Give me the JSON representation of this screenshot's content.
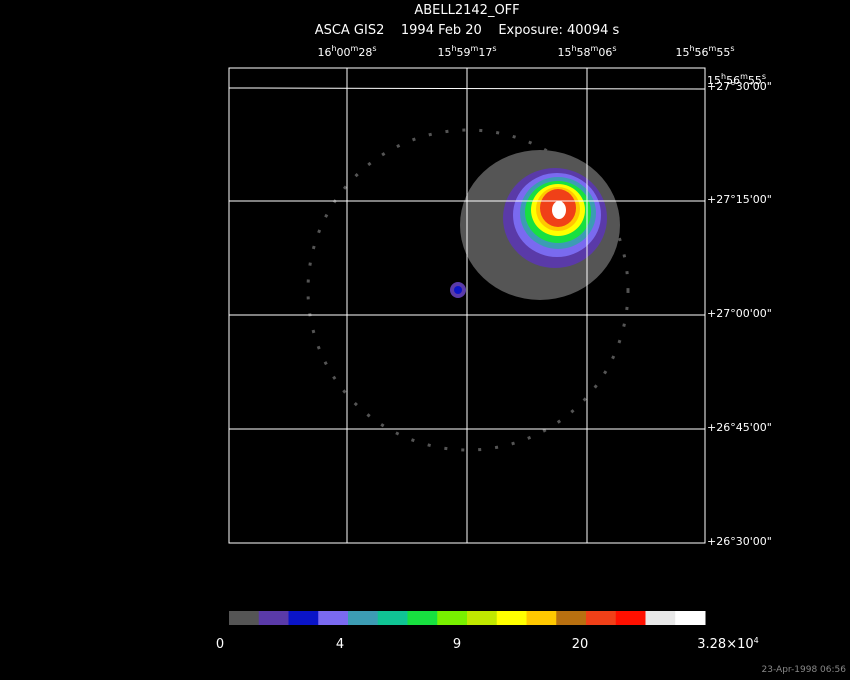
{
  "header": {
    "title": "ABELL2142_OFF",
    "subtitle": "ASCA GIS2    1994 Feb 20    Exposure: 40094 s"
  },
  "ra_labels": [
    [
      "16",
      "h",
      "00",
      "m",
      "28",
      "s"
    ],
    [
      "15",
      "h",
      "59",
      "m",
      "17",
      "s"
    ],
    [
      "15",
      "h",
      "58",
      "m",
      "06",
      "s"
    ],
    [
      "15",
      "h",
      "56",
      "m",
      "55",
      "s"
    ]
  ],
  "ra_corner_label": [
    "15",
    "h",
    "56",
    "m",
    "55",
    "s"
  ],
  "dec_labels": [
    "+27°30'00\"",
    "+27°15'00\"",
    "+27°00'00\"",
    "+26°45'00\"",
    "+26°30'00\""
  ],
  "colorbar": {
    "colors": [
      "#555555",
      "#5a3aa8",
      "#0a14c8",
      "#7a6af0",
      "#3c9cb4",
      "#10c494",
      "#18e040",
      "#78f000",
      "#c0e800",
      "#ffff00",
      "#ffc800",
      "#b87010",
      "#f04018",
      "#ff1000",
      "#e8e8e8",
      "#ffffff"
    ],
    "labels": [
      [
        "0"
      ],
      [
        "4"
      ],
      [
        "9"
      ],
      [
        "20"
      ],
      [
        "3.28×10",
        "4"
      ]
    ]
  },
  "timestamp": "23-Apr-1998 06:56"
}
